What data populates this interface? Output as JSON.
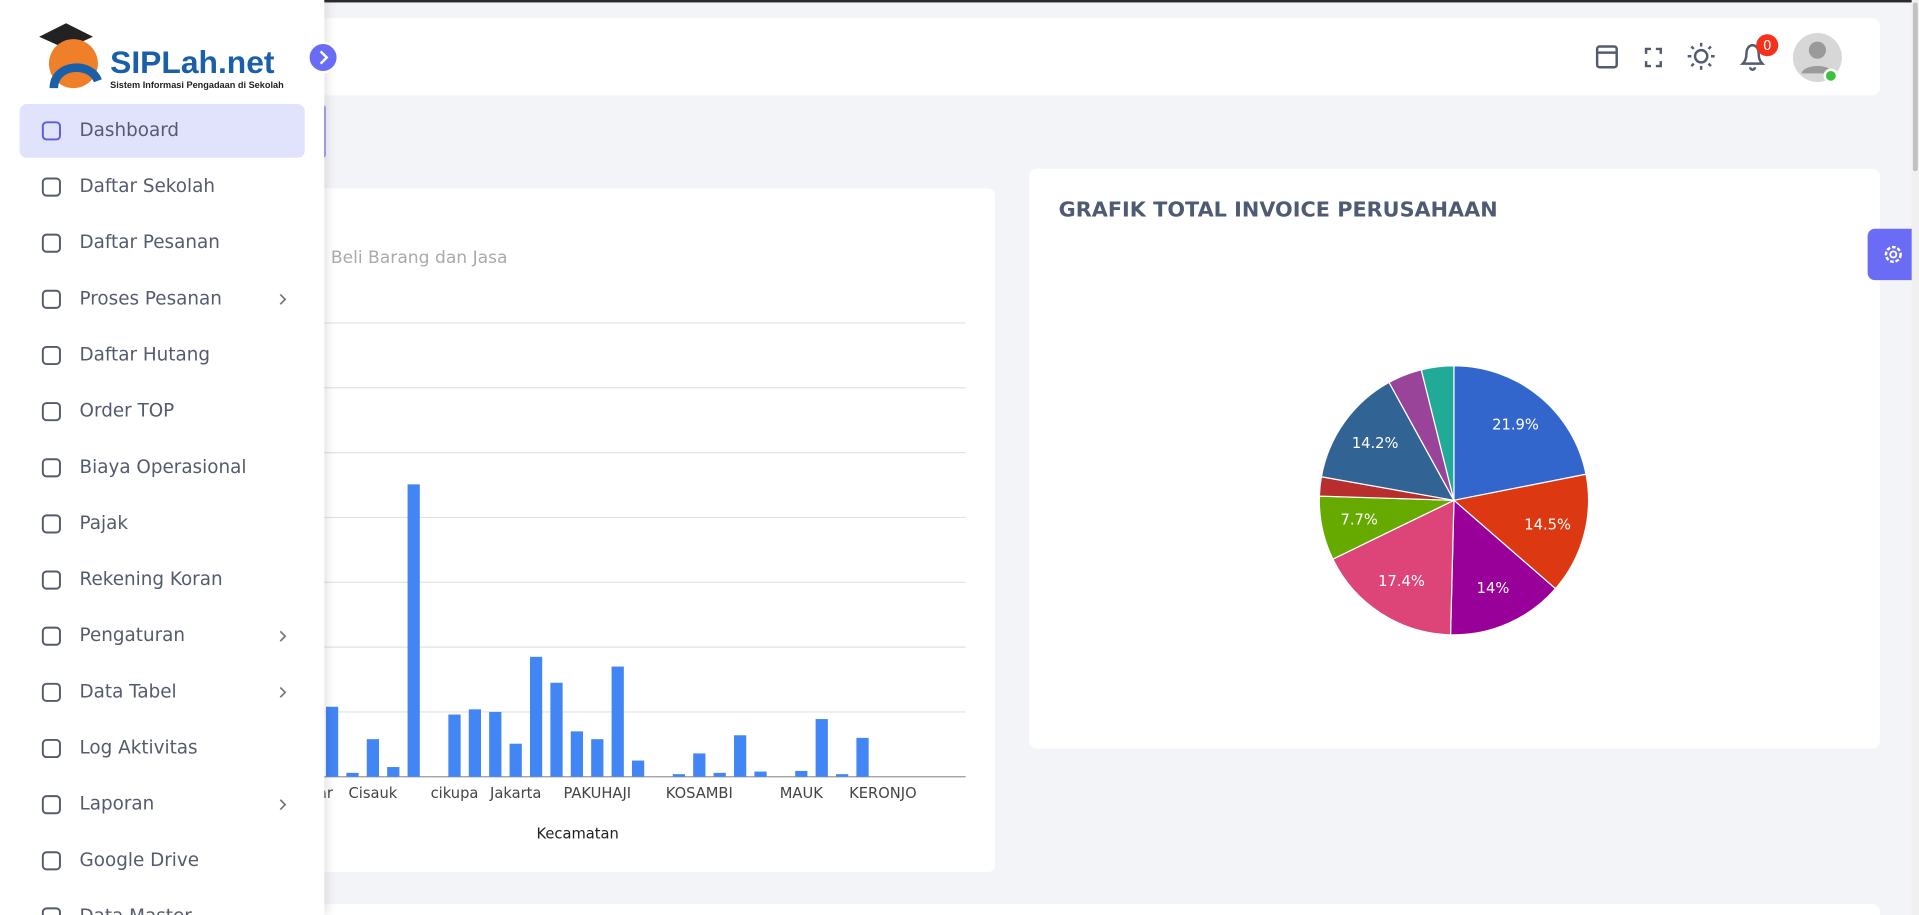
{
  "logo": {
    "name": "SIPLah.net",
    "tagline": "Sistem Informasi Pengadaan di Sekolah"
  },
  "header": {
    "notification_count": 0
  },
  "sidebar": {
    "items": [
      {
        "label": "Dashboard",
        "active": true
      },
      {
        "label": "Daftar Sekolah"
      },
      {
        "label": "Daftar Pesanan"
      },
      {
        "label": "Proses Pesanan",
        "submenu": true
      },
      {
        "label": "Daftar Hutang"
      },
      {
        "label": "Order TOP"
      },
      {
        "label": "Biaya Operasional"
      },
      {
        "label": "Pajak"
      },
      {
        "label": "Rekening Koran"
      },
      {
        "label": "Pengaturan",
        "submenu": true
      },
      {
        "label": "Data Tabel",
        "submenu": true
      },
      {
        "label": "Log Aktivitas"
      },
      {
        "label": "Laporan",
        "submenu": true
      },
      {
        "label": "Google Drive"
      },
      {
        "label": "Data Master"
      }
    ]
  },
  "chart_data": [
    {
      "type": "bar",
      "subtitle": "l Beli Barang dan Jasa",
      "x_label": "Kecamatan",
      "categories": [
        "ar",
        null,
        null,
        null,
        "Cisauk",
        null,
        null,
        null,
        "cikupa",
        null,
        null,
        "Jakarta",
        null,
        null,
        null,
        "PAKUHAJI",
        null,
        null,
        null,
        null,
        "KOSAMBI",
        null,
        null,
        null,
        null,
        "MAUK",
        null,
        null,
        null,
        "KERONJO",
        null,
        null,
        null
      ],
      "values": [
        null,
        null,
        1.08,
        0.06,
        0.58,
        0.15,
        4.51,
        0,
        0.96,
        1.04,
        1.0,
        0.51,
        1.85,
        1.45,
        0.7,
        0.58,
        1.7,
        0.25,
        0,
        0.04,
        0.36,
        0.06,
        0.64,
        0.08,
        0,
        0.09,
        0.89,
        0.04,
        0.6,
        0,
        0,
        0,
        0
      ],
      "color": "#4285f4",
      "ylim": [
        0,
        7
      ],
      "yticks": [
        1,
        2,
        3,
        4,
        5,
        6,
        7
      ],
      "grid": true
    },
    {
      "type": "pie",
      "title": "GRAFIK TOTAL INVOICE PERUSAHAAN",
      "values": [
        21.9,
        14.5,
        14,
        17.4,
        7.7,
        2.3,
        14.2,
        4.1,
        3.9
      ],
      "value_labels": [
        "21.9%",
        "14.5%",
        "14%",
        "17.4%",
        "7.7%",
        null,
        "14.2%",
        null,
        null
      ],
      "colors": [
        "#3366cc",
        "#dc3912",
        "#990099",
        "#dd4477",
        "#66aa00",
        "#b82e2e",
        "#316395",
        "#994499",
        "#22aa99"
      ]
    }
  ]
}
